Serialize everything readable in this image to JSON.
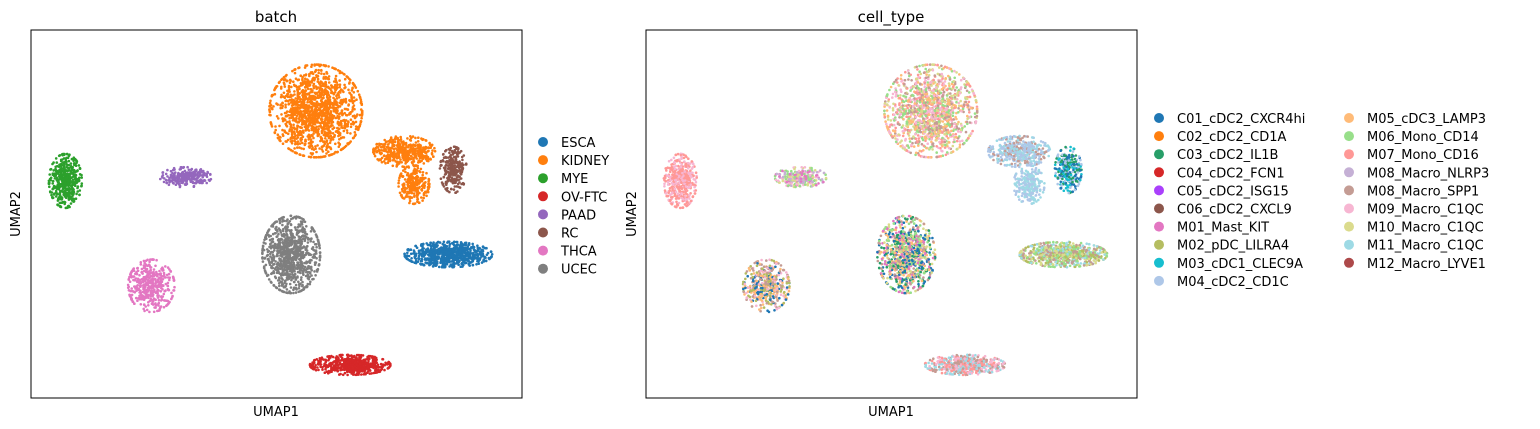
{
  "chart_data": [
    {
      "type": "scatter",
      "title": "batch",
      "xlabel": "UMAP1",
      "ylabel": "UMAP2",
      "grid": false,
      "ticks": false,
      "legend_placement": "right-outside",
      "legend_entries": [
        {
          "name": "ESCA",
          "color": "#1f77b4"
        },
        {
          "name": "KIDNEY",
          "color": "#ff7f0e"
        },
        {
          "name": "MYE",
          "color": "#2ca02c"
        },
        {
          "name": "OV-FTC",
          "color": "#d62728"
        },
        {
          "name": "PAAD",
          "color": "#9467bd"
        },
        {
          "name": "RC",
          "color": "#8c564b"
        },
        {
          "name": "THCA",
          "color": "#e377c2"
        },
        {
          "name": "UCEC",
          "color": "#7f7f7f"
        }
      ],
      "xlim": [
        0,
        100
      ],
      "ylim": [
        0,
        100
      ],
      "clusters": [
        {
          "batch": "KIDNEY",
          "center": [
            58,
            78
          ],
          "spread": [
            9,
            12
          ],
          "count": 1400
        },
        {
          "batch": "KIDNEY",
          "center": [
            76,
            67
          ],
          "spread": [
            6,
            4
          ],
          "count": 450
        },
        {
          "batch": "KIDNEY",
          "center": [
            78,
            58
          ],
          "spread": [
            3,
            5
          ],
          "count": 250
        },
        {
          "batch": "RC",
          "center": [
            86,
            62
          ],
          "spread": [
            2.6,
            6
          ],
          "count": 260
        },
        {
          "batch": "MYE",
          "center": [
            7,
            59
          ],
          "spread": [
            3.2,
            7
          ],
          "count": 450
        },
        {
          "batch": "PAAD",
          "center": [
            31.5,
            60
          ],
          "spread": [
            5,
            2.6
          ],
          "count": 280
        },
        {
          "batch": "ESCA",
          "center": [
            85,
            39
          ],
          "spread": [
            8.5,
            3.3
          ],
          "count": 750
        },
        {
          "batch": "UCEC",
          "center": [
            53,
            39
          ],
          "spread": [
            5.6,
            10
          ],
          "count": 900
        },
        {
          "batch": "THCA",
          "center": [
            24.5,
            30.5
          ],
          "spread": [
            4.5,
            6.8
          ],
          "count": 450
        },
        {
          "batch": "OV-FTC",
          "center": [
            65,
            9
          ],
          "spread": [
            7.8,
            2.6
          ],
          "count": 550
        }
      ]
    },
    {
      "type": "scatter",
      "title": "cell_type",
      "xlabel": "UMAP1",
      "ylabel": "UMAP2",
      "grid": false,
      "ticks": false,
      "legend_placement": "right-outside",
      "legend_columns": 2,
      "legend_entries": [
        {
          "name": "C01_cDC2_CXCR4hi",
          "color": "#1f77b4"
        },
        {
          "name": "C02_cDC2_CD1A",
          "color": "#ff7f0e"
        },
        {
          "name": "C03_cDC2_IL1B",
          "color": "#279e68"
        },
        {
          "name": "C04_cDC2_FCN1",
          "color": "#d62728"
        },
        {
          "name": "C05_cDC2_ISG15",
          "color": "#aa40fc"
        },
        {
          "name": "C06_cDC2_CXCL9",
          "color": "#8c564b"
        },
        {
          "name": "M01_Mast_KIT",
          "color": "#e377c2"
        },
        {
          "name": "M02_pDC_LILRA4",
          "color": "#b5bd61"
        },
        {
          "name": "M03_cDC1_CLEC9A",
          "color": "#17becf"
        },
        {
          "name": "M04_cDC2_CD1C",
          "color": "#aec7e8"
        },
        {
          "name": "M05_cDC3_LAMP3",
          "color": "#ffbb78"
        },
        {
          "name": "M06_Mono_CD14",
          "color": "#98df8a"
        },
        {
          "name": "M07_Mono_CD16",
          "color": "#ff9896"
        },
        {
          "name": "M08_Macro_NLRP3",
          "color": "#c5b0d5"
        },
        {
          "name": "M08_Macro_SPP1",
          "color": "#c49c94"
        },
        {
          "name": "M09_Macro_C1QC",
          "color": "#f7b6d2"
        },
        {
          "name": "M10_Macro_C1QC",
          "color": "#dbdb8d"
        },
        {
          "name": "M11_Macro_C1QC",
          "color": "#9edae5"
        },
        {
          "name": "M12_Macro_LYVE1",
          "color": "#ad494a"
        }
      ],
      "xlim": [
        0,
        100
      ],
      "ylim": [
        0,
        100
      ],
      "clusters": [
        {
          "center": [
            58,
            78
          ],
          "spread": [
            9,
            12
          ],
          "count": 1400,
          "mix": [
            "M08_Macro_SPP1",
            "M07_Mono_CD16",
            "M06_Mono_CD14",
            "M09_Macro_C1QC",
            "M10_Macro_C1QC",
            "M05_cDC3_LAMP3"
          ]
        },
        {
          "center": [
            76,
            67
          ],
          "spread": [
            6,
            4
          ],
          "count": 450,
          "mix": [
            "M04_cDC2_CD1C",
            "M11_Macro_C1QC",
            "M04_cDC2_CD1C",
            "M08_Macro_SPP1"
          ]
        },
        {
          "center": [
            78,
            58
          ],
          "spread": [
            3,
            5
          ],
          "count": 250,
          "mix": [
            "M04_cDC2_CD1C",
            "M11_Macro_C1QC"
          ]
        },
        {
          "center": [
            86,
            62
          ],
          "spread": [
            2.6,
            6
          ],
          "count": 260,
          "mix": [
            "C01_cDC2_CXCR4hi",
            "M03_cDC1_CLEC9A",
            "C03_cDC2_IL1B",
            "M04_cDC2_CD1C"
          ]
        },
        {
          "center": [
            7,
            59
          ],
          "spread": [
            3.2,
            7
          ],
          "count": 450,
          "mix": [
            "M07_Mono_CD16",
            "M07_Mono_CD16",
            "M09_Macro_C1QC"
          ]
        },
        {
          "center": [
            31.5,
            60
          ],
          "spread": [
            5,
            2.6
          ],
          "count": 280,
          "mix": [
            "M08_Macro_NLRP3",
            "M01_Mast_KIT",
            "M06_Mono_CD14",
            "M09_Macro_C1QC",
            "M10_Macro_C1QC"
          ]
        },
        {
          "center": [
            85,
            39
          ],
          "spread": [
            8.5,
            3.3
          ],
          "count": 750,
          "mix": [
            "M10_Macro_C1QC",
            "M06_Mono_CD14",
            "M08_Macro_SPP1",
            "M02_pDC_LILRA4",
            "M11_Macro_C1QC"
          ]
        },
        {
          "center": [
            53,
            39
          ],
          "spread": [
            5.6,
            10
          ],
          "count": 900,
          "mix": [
            "M06_Mono_CD14",
            "C01_cDC2_CXCR4hi",
            "M05_cDC3_LAMP3",
            "M08_Macro_SPP1",
            "C03_cDC2_IL1B",
            "M10_Macro_C1QC",
            "M01_Mast_KIT"
          ]
        },
        {
          "center": [
            24.5,
            30.5
          ],
          "spread": [
            4.5,
            6.8
          ],
          "count": 450,
          "mix": [
            "M08_Macro_SPP1",
            "M05_cDC3_LAMP3",
            "C01_cDC2_CXCR4hi",
            "M02_pDC_LILRA4",
            "M09_Macro_C1QC"
          ]
        },
        {
          "center": [
            65,
            9
          ],
          "spread": [
            7.8,
            2.6
          ],
          "count": 550,
          "mix": [
            "M08_Macro_SPP1",
            "M09_Macro_C1QC",
            "M07_Mono_CD16",
            "M11_Macro_C1QC"
          ]
        }
      ]
    }
  ]
}
